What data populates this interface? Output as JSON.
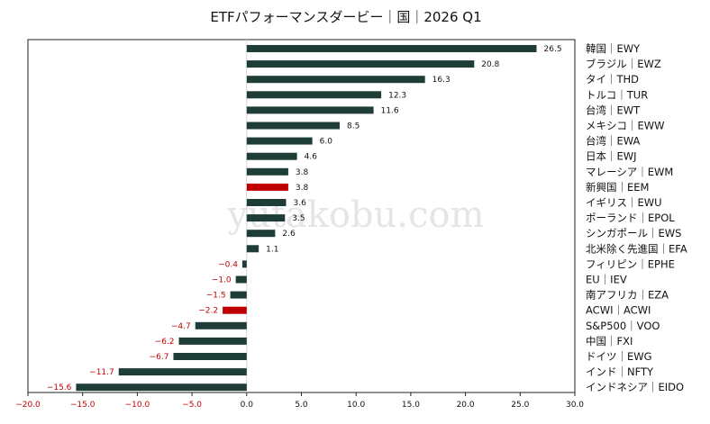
{
  "chart_data": {
    "type": "bar",
    "orientation": "horizontal",
    "title": "ETFパフォーマンスダービー｜国｜2026 Q1",
    "watermark": "yutakobu.com",
    "xlim": [
      -20,
      30
    ],
    "xticks": [
      -20.0,
      -15.0,
      -10.0,
      -5.0,
      0.0,
      5.0,
      10.0,
      15.0,
      20.0,
      25.0,
      30.0
    ],
    "grid": false,
    "colors": {
      "bar": "#1f3d37",
      "highlight": "#c00000",
      "positive_text": "#111111",
      "negative_text": "#c00000"
    },
    "categories": [
      "韓国｜EWY",
      "ブラジル｜EWZ",
      "タイ｜THD",
      "トルコ｜TUR",
      "台湾｜EWT",
      "メキシコ｜EWW",
      "台湾｜EWA",
      "日本｜EWJ",
      "マレーシア｜EWM",
      "新興国｜EEM",
      "イギリス｜EWU",
      "ポーランド｜EPOL",
      "シンガポール｜EWS",
      "北米除く先進国｜EFA",
      "フィリピン｜EPHE",
      "EU｜IEV",
      "南アフリカ｜EZA",
      "ACWI｜ACWI",
      "S&P500｜VOO",
      "中国｜FXI",
      "ドイツ｜EWG",
      "インド｜NFTY",
      "インドネシア｜EIDO"
    ],
    "values": [
      26.5,
      20.8,
      16.3,
      12.3,
      11.6,
      8.5,
      6.0,
      4.6,
      3.8,
      3.8,
      3.6,
      3.5,
      2.6,
      1.1,
      -0.4,
      -1.0,
      -1.5,
      -2.2,
      -4.7,
      -6.2,
      -6.7,
      -11.7,
      -15.6
    ],
    "highlighted": [
      "新興国｜EEM",
      "ACWI｜ACWI"
    ]
  }
}
